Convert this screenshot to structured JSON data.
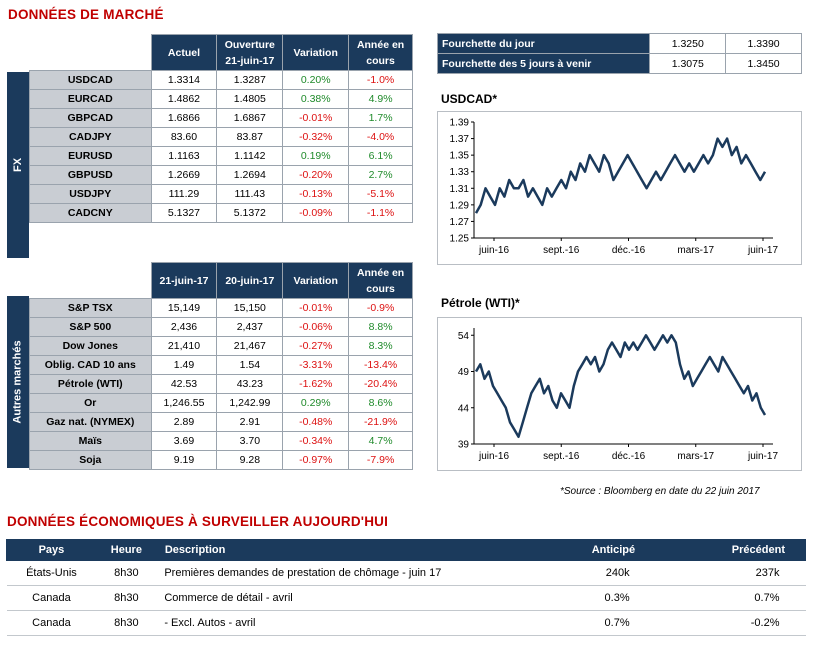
{
  "market": {
    "title": "DONNÉES DE MARCHÉ",
    "fx_side": "FX",
    "fx_headers": [
      "Actuel",
      "Ouverture 21-juin-17",
      "Variation",
      "Année en cours"
    ],
    "fx_rows": [
      [
        "USDCAD",
        "1.3314",
        "1.3287",
        "0.20%",
        "-1.0%"
      ],
      [
        "EURCAD",
        "1.4862",
        "1.4805",
        "0.38%",
        "4.9%"
      ],
      [
        "GBPCAD",
        "1.6866",
        "1.6867",
        "-0.01%",
        "1.7%"
      ],
      [
        "CADJPY",
        "83.60",
        "83.87",
        "-0.32%",
        "-4.0%"
      ],
      [
        "EURUSD",
        "1.1163",
        "1.1142",
        "0.19%",
        "6.1%"
      ],
      [
        "GBPUSD",
        "1.2669",
        "1.2694",
        "-0.20%",
        "2.7%"
      ],
      [
        "USDJPY",
        "111.29",
        "111.43",
        "-0.13%",
        "-5.1%"
      ],
      [
        "CADCNY",
        "5.1327",
        "5.1372",
        "-0.09%",
        "-1.1%"
      ]
    ],
    "other_side": "Autres marchés",
    "other_headers": [
      "21-juin-17",
      "20-juin-17",
      "Variation",
      "Année en cours"
    ],
    "other_rows": [
      [
        "S&P TSX",
        "15,149",
        "15,150",
        "-0.01%",
        "-0.9%"
      ],
      [
        "S&P 500",
        "2,436",
        "2,437",
        "-0.06%",
        "8.8%"
      ],
      [
        "Dow Jones",
        "21,410",
        "21,467",
        "-0.27%",
        "8.3%"
      ],
      [
        "Oblig. CAD 10 ans",
        "1.49",
        "1.54",
        "-3.31%",
        "-13.4%"
      ],
      [
        "Pétrole (WTI)",
        "42.53",
        "43.23",
        "-1.62%",
        "-20.4%"
      ],
      [
        "Or",
        "1,246.55",
        "1,242.99",
        "0.29%",
        "8.6%"
      ],
      [
        "Gaz nat. (NYMEX)",
        "2.89",
        "2.91",
        "-0.48%",
        "-21.9%"
      ],
      [
        "Maïs",
        "3.69",
        "3.70",
        "-0.34%",
        "4.7%"
      ],
      [
        "Soja",
        "9.19",
        "9.28",
        "-0.97%",
        "-7.9%"
      ]
    ],
    "range_rows": [
      [
        "Fourchette du jour",
        "1.3250",
        "1.3390"
      ],
      [
        "Fourchette des 5 jours à venir",
        "1.3075",
        "1.3450"
      ]
    ],
    "source": "*Source : Bloomberg en date du  22 juin 2017"
  },
  "chart_data": [
    {
      "type": "line",
      "title": "USDCAD*",
      "x_ticks": [
        "juin-16",
        "sept.-16",
        "déc.-16",
        "mars-17",
        "juin-17"
      ],
      "ylim": [
        1.25,
        1.39
      ],
      "y_ticks": [
        "1.39",
        "1.37",
        "1.35",
        "1.33",
        "1.31",
        "1.29",
        "1.27",
        "1.25"
      ],
      "series": [
        {
          "values": [
            1.28,
            1.29,
            1.31,
            1.3,
            1.29,
            1.31,
            1.3,
            1.32,
            1.31,
            1.31,
            1.32,
            1.3,
            1.31,
            1.3,
            1.29,
            1.31,
            1.3,
            1.31,
            1.32,
            1.31,
            1.33,
            1.32,
            1.34,
            1.33,
            1.35,
            1.34,
            1.33,
            1.35,
            1.34,
            1.32,
            1.33,
            1.34,
            1.35,
            1.34,
            1.33,
            1.32,
            1.31,
            1.32,
            1.33,
            1.32,
            1.33,
            1.34,
            1.35,
            1.34,
            1.33,
            1.34,
            1.33,
            1.34,
            1.35,
            1.34,
            1.35,
            1.37,
            1.36,
            1.37,
            1.35,
            1.36,
            1.34,
            1.35,
            1.34,
            1.33,
            1.32,
            1.33
          ]
        }
      ]
    },
    {
      "type": "line",
      "title": "Pétrole (WTI)*",
      "x_ticks": [
        "juin-16",
        "sept.-16",
        "déc.-16",
        "mars-17",
        "juin-17"
      ],
      "ylim": [
        39,
        55
      ],
      "y_ticks": [
        "54",
        "49",
        "44",
        "39"
      ],
      "series": [
        {
          "values": [
            49,
            50,
            48,
            49,
            47,
            46,
            45,
            44,
            42,
            41,
            40,
            42,
            44,
            46,
            47,
            48,
            46,
            47,
            45,
            44,
            46,
            45,
            44,
            47,
            49,
            50,
            51,
            50,
            51,
            49,
            50,
            52,
            53,
            52,
            51,
            53,
            52,
            53,
            52,
            53,
            54,
            53,
            52,
            53,
            54,
            53,
            54,
            53,
            50,
            48,
            49,
            47,
            48,
            49,
            50,
            51,
            50,
            49,
            51,
            50,
            49,
            48,
            47,
            46,
            47,
            45,
            46,
            44,
            43
          ]
        }
      ]
    }
  ],
  "economic": {
    "title": "DONNÉES ÉCONOMIQUES À SURVEILLER AUJOURD'HUI",
    "headers": [
      "Pays",
      "Heure",
      "Description",
      "Anticipé",
      "Précédent"
    ],
    "rows": [
      [
        "États-Unis",
        "8h30",
        "Premières demandes de prestation de chômage - juin 17",
        "240k",
        "237k"
      ],
      [
        "Canada",
        "8h30",
        "Commerce de détail - avril",
        "0.3%",
        "0.7%"
      ],
      [
        "Canada",
        "8h30",
        "- Excl. Autos - avril",
        "0.7%",
        "-0.2%"
      ]
    ]
  },
  "colors": {
    "navy": "#1b3a5c",
    "red_title": "#c00000",
    "positive": "#1f8a2a",
    "negative": "#dd1111"
  }
}
